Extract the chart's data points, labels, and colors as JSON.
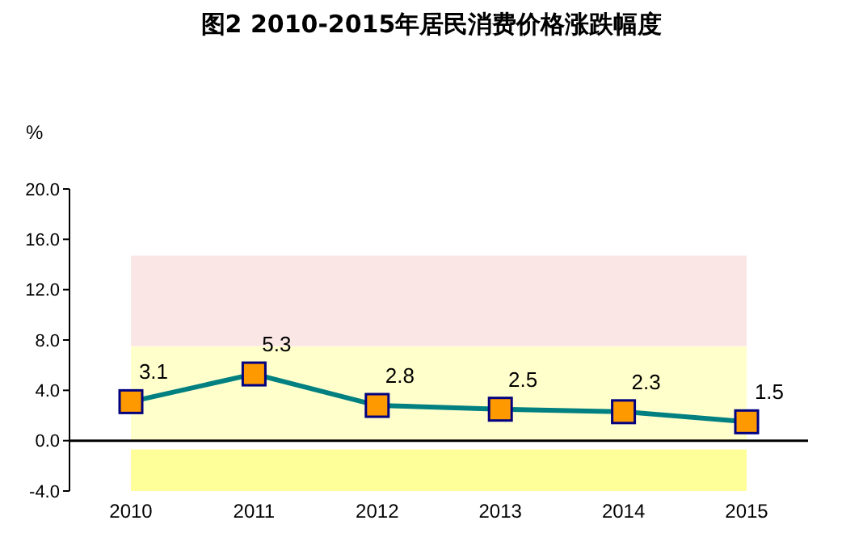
{
  "chart_data": {
    "type": "line",
    "title": "图2 2010-2015年居民消费价格涨跌幅度",
    "ylabel": "%",
    "categories": [
      "2010",
      "2011",
      "2012",
      "2013",
      "2014",
      "2015"
    ],
    "series": [
      {
        "color": "#008080",
        "values": [
          3.1,
          5.3,
          2.8,
          2.5,
          2.3,
          1.5
        ]
      }
    ],
    "marker": "square",
    "data_labels": true,
    "grid": false,
    "legend": false,
    "ylim": [
      -4,
      20
    ],
    "yticks": [
      {
        "value": -4,
        "label": "-4.0"
      },
      {
        "value": 0,
        "label": "0.0"
      },
      {
        "value": 4,
        "label": "4.0"
      },
      {
        "value": 8,
        "label": "8.0"
      },
      {
        "value": 12,
        "label": "12.0"
      },
      {
        "value": 16,
        "label": "16.0"
      },
      {
        "value": 20,
        "label": "20.0"
      }
    ],
    "bands": [
      {
        "axis": "y",
        "from": 0,
        "to": 7.5,
        "color": "#ffffcc"
      },
      {
        "axis": "y",
        "from": -4,
        "to": -0.7,
        "color": "#ffff99"
      },
      {
        "axis": "y",
        "from": 7.5,
        "to": 14.7,
        "color": "#fbe6e6"
      }
    ],
    "ref_lines": [
      {
        "axis": "y",
        "value": 0,
        "color": "#000000"
      }
    ]
  }
}
